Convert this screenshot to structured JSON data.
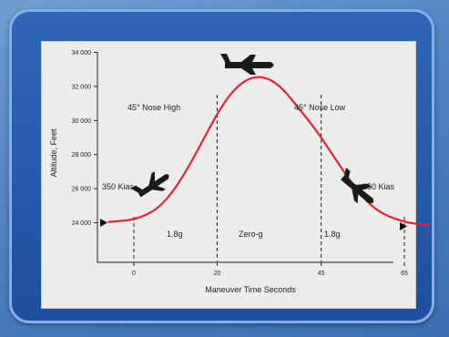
{
  "chart_data": {
    "type": "line",
    "xlabel": "Maneuver Time Seconds",
    "ylabel": "Altitude, Feet",
    "ylim": [
      23000,
      34000
    ],
    "xlim": [
      -9,
      73
    ],
    "x_ticks": [
      0,
      20,
      45,
      65
    ],
    "y_ticks": [
      24000,
      26000,
      28000,
      30000,
      32000,
      34000
    ],
    "y_tick_labels": [
      "24 000",
      "26 000",
      "28 000",
      "30 000",
      "32 000",
      "34 000"
    ],
    "x_tick_labels": [
      "0",
      "20",
      "45",
      "65"
    ],
    "grid": false,
    "series": [
      {
        "color": "#e3223a",
        "x": [
          -6,
          -3,
          0,
          3,
          6,
          9,
          12,
          15,
          18,
          21,
          24,
          27,
          30,
          33,
          36,
          39,
          42,
          45,
          48,
          51,
          54,
          57,
          60,
          63,
          66,
          69,
          71
        ],
        "y": [
          24050,
          24100,
          24200,
          24450,
          24900,
          25700,
          26800,
          28100,
          29500,
          30800,
          31800,
          32400,
          32600,
          32400,
          31800,
          30900,
          30000,
          29000,
          27900,
          26800,
          25800,
          25000,
          24500,
          24200,
          24000,
          23900,
          23850
        ]
      }
    ],
    "annotations": {
      "nose_high": "45° Nose High",
      "nose_low": "45° Nose Low",
      "kias_left": "350 Kias",
      "kias_right": "350 Kias",
      "phase_1": "1.8g",
      "phase_2": "Zero-g",
      "phase_3": "1.8g"
    }
  }
}
